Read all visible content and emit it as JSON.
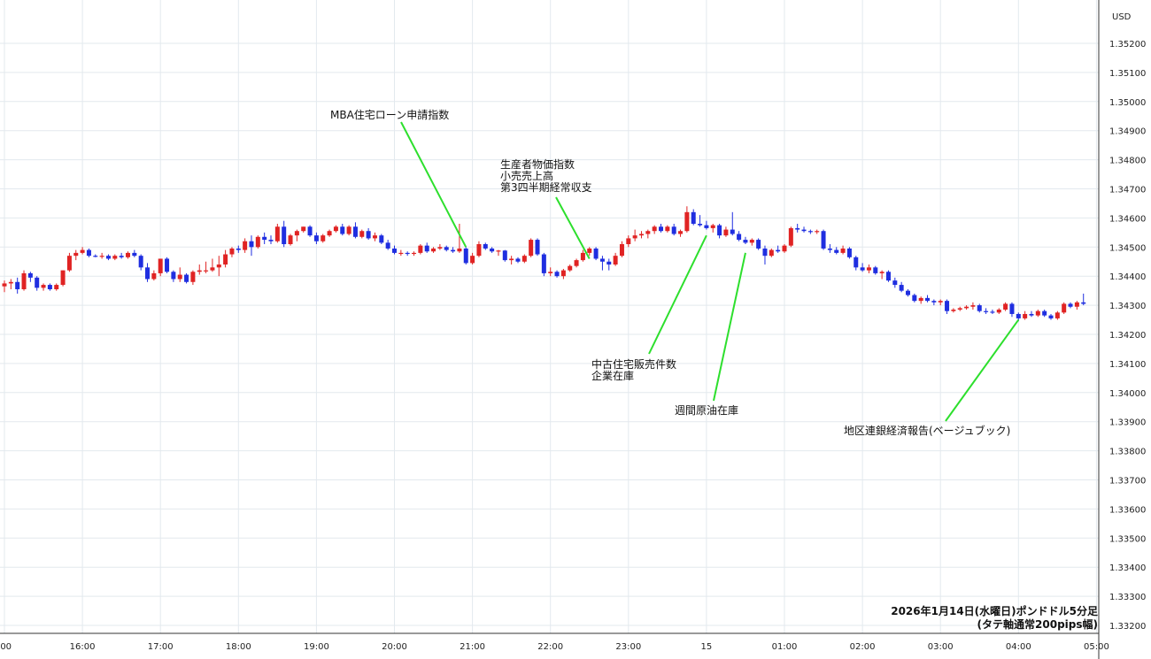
{
  "chart_data": {
    "type": "candlestick",
    "currency": "USD",
    "caption_line1": "2026年1月14日(水曜日)ポンドドル5分足",
    "caption_line2": "(タテ軸通常200pips幅)",
    "ylim": [
      1.3315,
      1.353
    ],
    "y_ticks": [
      "1.35200",
      "1.35100",
      "1.35000",
      "1.34900",
      "1.34800",
      "1.34700",
      "1.34600",
      "1.34500",
      "1.34400",
      "1.34300",
      "1.34200",
      "1.34100",
      "1.34000",
      "1.33900",
      "1.33800",
      "1.33700",
      "1.33600",
      "1.33500",
      "1.33400",
      "1.33300",
      "1.33200"
    ],
    "x_ticks": [
      ":00",
      "16:00",
      "17:00",
      "18:00",
      "19:00",
      "20:00",
      "21:00",
      "22:00",
      "23:00",
      "15",
      "01:00",
      "02:00",
      "03:00",
      "04:00",
      "05:00"
    ],
    "x_start": "15:00",
    "x_step_minutes": 5,
    "candles": [
      [
        1.34365,
        1.34385,
        1.34345,
        1.34375
      ],
      [
        1.34375,
        1.3439,
        1.34355,
        1.3438
      ],
      [
        1.3438,
        1.34395,
        1.3434,
        1.34355
      ],
      [
        1.34355,
        1.3442,
        1.3435,
        1.3441
      ],
      [
        1.3441,
        1.34415,
        1.3438,
        1.34395
      ],
      [
        1.34395,
        1.344,
        1.3435,
        1.3436
      ],
      [
        1.3436,
        1.34375,
        1.3435,
        1.3437
      ],
      [
        1.3437,
        1.34375,
        1.3435,
        1.34355
      ],
      [
        1.34355,
        1.34375,
        1.3435,
        1.3437
      ],
      [
        1.3437,
        1.3442,
        1.34365,
        1.3442
      ],
      [
        1.3442,
        1.3448,
        1.34415,
        1.3447
      ],
      [
        1.3447,
        1.3449,
        1.34455,
        1.3448
      ],
      [
        1.3448,
        1.345,
        1.34475,
        1.3449
      ],
      [
        1.3449,
        1.34495,
        1.34465,
        1.3447
      ],
      [
        1.3447,
        1.34475,
        1.34465,
        1.34468
      ],
      [
        1.34468,
        1.3448,
        1.3446,
        1.3447
      ],
      [
        1.3447,
        1.34475,
        1.34455,
        1.3446
      ],
      [
        1.3446,
        1.34475,
        1.34455,
        1.3447
      ],
      [
        1.3447,
        1.3448,
        1.3446,
        1.34465
      ],
      [
        1.34465,
        1.34485,
        1.3446,
        1.3448
      ],
      [
        1.3448,
        1.3449,
        1.34465,
        1.3447
      ],
      [
        1.3447,
        1.34475,
        1.3442,
        1.3443
      ],
      [
        1.3443,
        1.34445,
        1.3438,
        1.3439
      ],
      [
        1.3439,
        1.3442,
        1.34385,
        1.3441
      ],
      [
        1.3441,
        1.3446,
        1.344,
        1.3446
      ],
      [
        1.3446,
        1.34465,
        1.3441,
        1.34415
      ],
      [
        1.34415,
        1.3442,
        1.3438,
        1.3439
      ],
      [
        1.3439,
        1.3443,
        1.3438,
        1.34405
      ],
      [
        1.34405,
        1.3441,
        1.34375,
        1.3438
      ],
      [
        1.3438,
        1.3442,
        1.3437,
        1.34415
      ],
      [
        1.34415,
        1.3444,
        1.34405,
        1.3442
      ],
      [
        1.3442,
        1.3445,
        1.3441,
        1.3442
      ],
      [
        1.3442,
        1.3446,
        1.34415,
        1.3443
      ],
      [
        1.3443,
        1.3447,
        1.344,
        1.3444
      ],
      [
        1.3444,
        1.3449,
        1.3443,
        1.34475
      ],
      [
        1.34475,
        1.345,
        1.34465,
        1.34495
      ],
      [
        1.34495,
        1.34505,
        1.3448,
        1.3449
      ],
      [
        1.3449,
        1.3453,
        1.3448,
        1.3452
      ],
      [
        1.3452,
        1.3454,
        1.3447,
        1.345
      ],
      [
        1.345,
        1.3454,
        1.34495,
        1.34535
      ],
      [
        1.34535,
        1.3455,
        1.3451,
        1.34525
      ],
      [
        1.34525,
        1.3454,
        1.3451,
        1.3452
      ],
      [
        1.3452,
        1.3458,
        1.34515,
        1.3457
      ],
      [
        1.3457,
        1.3459,
        1.345,
        1.3451
      ],
      [
        1.3451,
        1.34545,
        1.34505,
        1.3454
      ],
      [
        1.3454,
        1.3456,
        1.3452,
        1.34555
      ],
      [
        1.34555,
        1.3457,
        1.3455,
        1.3457
      ],
      [
        1.3457,
        1.34575,
        1.34535,
        1.3454
      ],
      [
        1.3454,
        1.3455,
        1.3451,
        1.3452
      ],
      [
        1.3452,
        1.34545,
        1.34515,
        1.3454
      ],
      [
        1.3454,
        1.3456,
        1.34535,
        1.34555
      ],
      [
        1.34555,
        1.34575,
        1.3455,
        1.3457
      ],
      [
        1.3457,
        1.3458,
        1.3454,
        1.34545
      ],
      [
        1.34545,
        1.34575,
        1.3454,
        1.3457
      ],
      [
        1.3457,
        1.34585,
        1.3453,
        1.34535
      ],
      [
        1.34535,
        1.3456,
        1.3453,
        1.34555
      ],
      [
        1.34555,
        1.34565,
        1.34525,
        1.3453
      ],
      [
        1.3453,
        1.3455,
        1.3452,
        1.3454
      ],
      [
        1.3454,
        1.34545,
        1.3451,
        1.34515
      ],
      [
        1.34515,
        1.34525,
        1.3449,
        1.34495
      ],
      [
        1.34495,
        1.34505,
        1.34475,
        1.3448
      ],
      [
        1.3448,
        1.3449,
        1.3447,
        1.3448
      ],
      [
        1.3448,
        1.34485,
        1.3447,
        1.34478
      ],
      [
        1.34478,
        1.34485,
        1.3447,
        1.3448
      ],
      [
        1.3448,
        1.3451,
        1.34475,
        1.34505
      ],
      [
        1.34505,
        1.34515,
        1.3448,
        1.34485
      ],
      [
        1.34485,
        1.345,
        1.3448,
        1.34495
      ],
      [
        1.34495,
        1.3451,
        1.3449,
        1.345
      ],
      [
        1.345,
        1.34505,
        1.34485,
        1.3449
      ],
      [
        1.3449,
        1.345,
        1.3448,
        1.34485
      ],
      [
        1.34485,
        1.3458,
        1.3448,
        1.34495
      ],
      [
        1.34495,
        1.345,
        1.3444,
        1.34445
      ],
      [
        1.34445,
        1.3448,
        1.3444,
        1.3447
      ],
      [
        1.3447,
        1.3452,
        1.34465,
        1.3451
      ],
      [
        1.3451,
        1.34515,
        1.3449,
        1.34495
      ],
      [
        1.34495,
        1.345,
        1.3448,
        1.34485
      ],
      [
        1.34485,
        1.3449,
        1.3447,
        1.34488
      ],
      [
        1.34488,
        1.3449,
        1.3445,
        1.34455
      ],
      [
        1.34455,
        1.3447,
        1.3444,
        1.3446
      ],
      [
        1.3446,
        1.34465,
        1.34445,
        1.3445
      ],
      [
        1.3445,
        1.34475,
        1.34445,
        1.3447
      ],
      [
        1.3447,
        1.3453,
        1.34465,
        1.34525
      ],
      [
        1.34525,
        1.3453,
        1.3447,
        1.34475
      ],
      [
        1.34475,
        1.3448,
        1.344,
        1.3441
      ],
      [
        1.3441,
        1.3443,
        1.344,
        1.34415
      ],
      [
        1.34415,
        1.3442,
        1.34395,
        1.344
      ],
      [
        1.344,
        1.34425,
        1.3439,
        1.3442
      ],
      [
        1.3442,
        1.3444,
        1.34415,
        1.34435
      ],
      [
        1.34435,
        1.3446,
        1.3443,
        1.34455
      ],
      [
        1.34455,
        1.3449,
        1.3445,
        1.3448
      ],
      [
        1.3448,
        1.345,
        1.3447,
        1.34495
      ],
      [
        1.34495,
        1.345,
        1.34455,
        1.3446
      ],
      [
        1.3446,
        1.3447,
        1.3442,
        1.3445
      ],
      [
        1.3445,
        1.3446,
        1.3442,
        1.3444
      ],
      [
        1.3444,
        1.3448,
        1.34435,
        1.3447
      ],
      [
        1.3447,
        1.3452,
        1.34465,
        1.3451
      ],
      [
        1.3451,
        1.3454,
        1.345,
        1.3453
      ],
      [
        1.3453,
        1.3456,
        1.3452,
        1.3454
      ],
      [
        1.3454,
        1.34555,
        1.3453,
        1.34545
      ],
      [
        1.34545,
        1.3456,
        1.3453,
        1.34555
      ],
      [
        1.34555,
        1.34575,
        1.34545,
        1.3457
      ],
      [
        1.3457,
        1.3458,
        1.3455,
        1.34555
      ],
      [
        1.34555,
        1.34575,
        1.3455,
        1.3457
      ],
      [
        1.3457,
        1.3458,
        1.3454,
        1.34545
      ],
      [
        1.34545,
        1.3456,
        1.34535,
        1.34555
      ],
      [
        1.34555,
        1.3464,
        1.3455,
        1.3462
      ],
      [
        1.3462,
        1.3463,
        1.34575,
        1.3458
      ],
      [
        1.3458,
        1.3461,
        1.3457,
        1.34575
      ],
      [
        1.34575,
        1.3459,
        1.3456,
        1.34565
      ],
      [
        1.34565,
        1.3458,
        1.3455,
        1.34575
      ],
      [
        1.34575,
        1.3458,
        1.3453,
        1.3454
      ],
      [
        1.3454,
        1.3457,
        1.34535,
        1.3456
      ],
      [
        1.3456,
        1.3462,
        1.3454,
        1.34545
      ],
      [
        1.34545,
        1.34555,
        1.3452,
        1.34525
      ],
      [
        1.34525,
        1.34535,
        1.3451,
        1.34515
      ],
      [
        1.34515,
        1.3453,
        1.34505,
        1.34525
      ],
      [
        1.34525,
        1.3453,
        1.3449,
        1.34495
      ],
      [
        1.34495,
        1.34505,
        1.3444,
        1.3447
      ],
      [
        1.3447,
        1.34495,
        1.34465,
        1.3449
      ],
      [
        1.3449,
        1.34505,
        1.3448,
        1.34485
      ],
      [
        1.34485,
        1.3451,
        1.3448,
        1.34505
      ],
      [
        1.34505,
        1.3457,
        1.345,
        1.34565
      ],
      [
        1.34565,
        1.3458,
        1.3455,
        1.3456
      ],
      [
        1.3456,
        1.3457,
        1.3455,
        1.34555
      ],
      [
        1.34555,
        1.3456,
        1.34545,
        1.34552
      ],
      [
        1.34552,
        1.3456,
        1.34545,
        1.34555
      ],
      [
        1.34555,
        1.3456,
        1.3449,
        1.34495
      ],
      [
        1.34495,
        1.3451,
        1.3448,
        1.3449
      ],
      [
        1.3449,
        1.345,
        1.34475,
        1.3448
      ],
      [
        1.3448,
        1.34505,
        1.34475,
        1.34495
      ],
      [
        1.34495,
        1.345,
        1.3446,
        1.34465
      ],
      [
        1.34465,
        1.3447,
        1.3442,
        1.3443
      ],
      [
        1.3443,
        1.34445,
        1.34415,
        1.3442
      ],
      [
        1.3442,
        1.3444,
        1.3441,
        1.3443
      ],
      [
        1.3443,
        1.34435,
        1.34405,
        1.3441
      ],
      [
        1.3441,
        1.3442,
        1.3439,
        1.34415
      ],
      [
        1.34415,
        1.3442,
        1.3438,
        1.34385
      ],
      [
        1.34385,
        1.34395,
        1.3436,
        1.3437
      ],
      [
        1.3437,
        1.3438,
        1.34345,
        1.3435
      ],
      [
        1.3435,
        1.34355,
        1.3433,
        1.34335
      ],
      [
        1.34335,
        1.3434,
        1.3431,
        1.34315
      ],
      [
        1.34315,
        1.3433,
        1.34305,
        1.34325
      ],
      [
        1.34325,
        1.34335,
        1.3431,
        1.34315
      ],
      [
        1.34315,
        1.3432,
        1.343,
        1.3431
      ],
      [
        1.3431,
        1.3432,
        1.343,
        1.34315
      ],
      [
        1.34315,
        1.3432,
        1.3427,
        1.3428
      ],
      [
        1.3428,
        1.3429,
        1.34275,
        1.34285
      ],
      [
        1.34285,
        1.34295,
        1.3428,
        1.3429
      ],
      [
        1.3429,
        1.343,
        1.34285,
        1.34295
      ],
      [
        1.34295,
        1.3431,
        1.34285,
        1.343
      ],
      [
        1.343,
        1.34305,
        1.34275,
        1.3428
      ],
      [
        1.3428,
        1.3429,
        1.3427,
        1.34278
      ],
      [
        1.34278,
        1.34285,
        1.3427,
        1.34275
      ],
      [
        1.34275,
        1.3429,
        1.3427,
        1.34285
      ],
      [
        1.34285,
        1.3431,
        1.3428,
        1.34305
      ],
      [
        1.34305,
        1.3431,
        1.3426,
        1.3427
      ],
      [
        1.3427,
        1.34275,
        1.34245,
        1.34255
      ],
      [
        1.34255,
        1.3428,
        1.3425,
        1.3427
      ],
      [
        1.3427,
        1.3428,
        1.3426,
        1.34265
      ],
      [
        1.34265,
        1.34285,
        1.3426,
        1.3428
      ],
      [
        1.3428,
        1.34285,
        1.3426,
        1.34265
      ],
      [
        1.34265,
        1.3427,
        1.3425,
        1.34255
      ],
      [
        1.34255,
        1.3428,
        1.3425,
        1.34275
      ],
      [
        1.34275,
        1.3431,
        1.3427,
        1.34305
      ],
      [
        1.34305,
        1.3431,
        1.3429,
        1.34295
      ],
      [
        1.34295,
        1.34315,
        1.34285,
        1.3431
      ],
      [
        1.3431,
        1.3434,
        1.343,
        1.34305
      ]
    ],
    "annotations": [
      {
        "lines": [
          "MBA住宅ローン申請指数"
        ],
        "target_time": "20:55",
        "target_price": 1.345
      },
      {
        "lines": [
          "生産者物価指数",
          "小売売上高",
          "第3四半期経常収支"
        ],
        "target_time": "22:30",
        "target_price": 1.3446
      },
      {
        "lines": [
          "中古住宅販売件数",
          "企業在庫"
        ],
        "target_time": "00:00",
        "target_price": 1.3454
      },
      {
        "lines": [
          "週間原油在庫"
        ],
        "target_time": "00:30",
        "target_price": 1.3448
      },
      {
        "lines": [
          "地区連銀経済報告(ベージュブック)"
        ],
        "target_time": "04:00",
        "target_price": 1.3425
      }
    ],
    "colors": {
      "up": "#e02323",
      "down": "#1f2ee0",
      "wick_up": "#e02323",
      "wick_down": "#1f2ee0",
      "grid": "#e3e9ee",
      "annotation_line": "#2ddf2d"
    }
  }
}
